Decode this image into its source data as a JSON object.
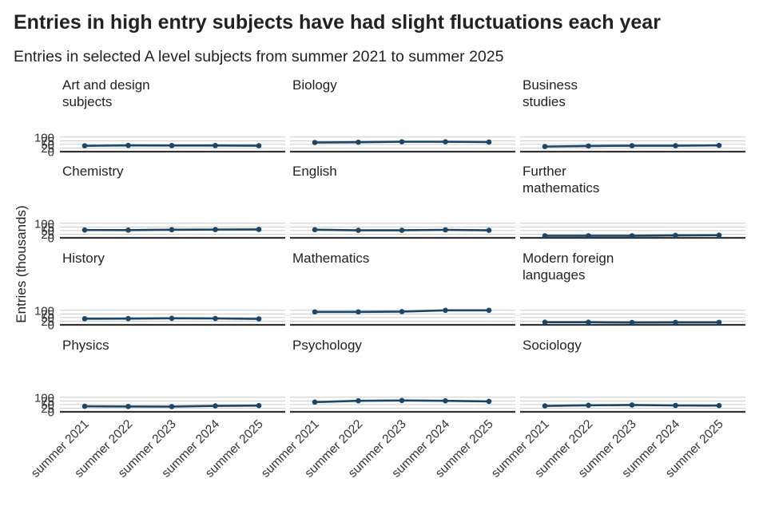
{
  "chart_title": "Entries in high entry subjects have had slight fluctuations each year",
  "chart_subtitle": "Entries in selected A level subjects from summer 2021 to summer 2025",
  "chart_data": {
    "type": "line",
    "title": "Entries in high entry subjects have had slight fluctuations each year",
    "subtitle": "Entries in selected A level subjects from summer 2021 to summer 2025",
    "xlabel": "",
    "ylabel": "Entries (thousands)",
    "ylim": [
      0,
      100
    ],
    "y_ticks": [
      0,
      25,
      50,
      75,
      100
    ],
    "grid": true,
    "layout": "facets 4 rows x 3 columns, shared axes",
    "line_color": "#1d4566",
    "x": [
      "summer 2021",
      "summer 2022",
      "summer 2023",
      "summer 2024",
      "summer 2025"
    ],
    "panels": [
      {
        "name": "Art and design subjects",
        "label_lines": [
          "Art and design",
          "subjects"
        ],
        "values": [
          40,
          43,
          42,
          42,
          41
        ]
      },
      {
        "name": "Biology",
        "label_lines": [
          "Biology"
        ],
        "values": [
          63,
          65,
          68,
          68,
          66
        ]
      },
      {
        "name": "Business studies",
        "label_lines": [
          "Business",
          "studies"
        ],
        "values": [
          35,
          39,
          41,
          41,
          43
        ]
      },
      {
        "name": "Chemistry",
        "label_lines": [
          "Chemistry"
        ],
        "values": [
          54,
          53,
          56,
          57,
          58
        ]
      },
      {
        "name": "English",
        "label_lines": [
          "English"
        ],
        "values": [
          56,
          52,
          52,
          55,
          52
        ]
      },
      {
        "name": "Further mathematics",
        "label_lines": [
          "Further",
          "mathematics"
        ],
        "values": [
          14,
          14,
          14,
          17,
          18
        ]
      },
      {
        "name": "History",
        "label_lines": [
          "History"
        ],
        "values": [
          42,
          43,
          45,
          44,
          41
        ]
      },
      {
        "name": "Mathematics",
        "label_lines": [
          "Mathematics"
        ],
        "values": [
          89,
          89,
          91,
          101,
          105
        ]
      },
      {
        "name": "Modern foreign languages",
        "label_lines": [
          "Modern foreign",
          "languages"
        ],
        "values": [
          18,
          18,
          16,
          17,
          17
        ]
      },
      {
        "name": "Physics",
        "label_lines": [
          "Physics"
        ],
        "values": [
          38,
          37,
          36,
          41,
          43
        ]
      },
      {
        "name": "Psychology",
        "label_lines": [
          "Psychology"
        ],
        "values": [
          67,
          76,
          78,
          76,
          72
        ]
      },
      {
        "name": "Sociology",
        "label_lines": [
          "Sociology"
        ],
        "values": [
          41,
          45,
          47,
          44,
          43
        ]
      }
    ]
  }
}
